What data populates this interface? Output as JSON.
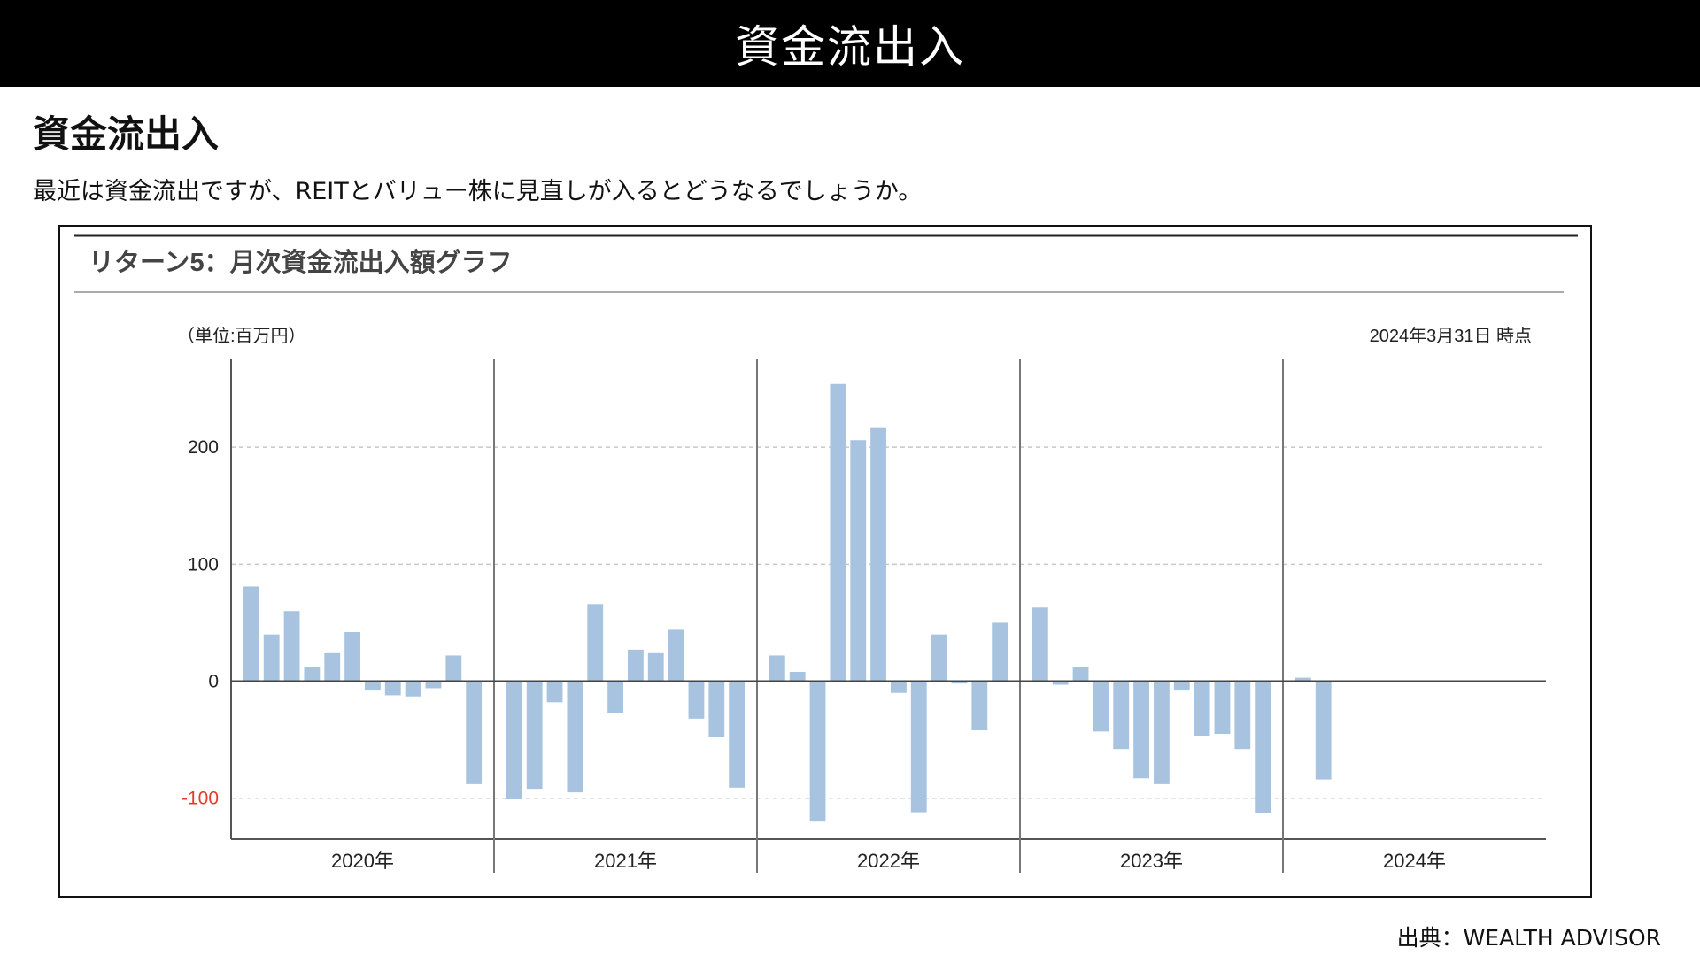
{
  "header": {
    "title": "資金流出入"
  },
  "section": {
    "heading": "資金流出入",
    "description": "最近は資金流出ですが、REITとバリュー株に見直しが入るとどうなるでしょうか。"
  },
  "chart_data": {
    "type": "bar",
    "title": "リターン5：月次資金流出入額グラフ",
    "unit_label": "（単位:百万円）",
    "as_of": "2024年3月31日 時点",
    "ylim": [
      -135,
      275
    ],
    "yticks": [
      {
        "value": 200,
        "label": "200",
        "color": "#222222"
      },
      {
        "value": 100,
        "label": "100",
        "color": "#222222"
      },
      {
        "value": 0,
        "label": "0",
        "color": "#222222"
      },
      {
        "value": -100,
        "label": "-100",
        "color": "#e53a2a"
      }
    ],
    "grid": true,
    "bar_color": "#a7c3df",
    "years": [
      {
        "label": "2020年",
        "values": [
          81,
          40,
          60,
          12,
          24,
          42,
          -8,
          -12,
          -13,
          -6,
          22,
          -88
        ]
      },
      {
        "label": "2021年",
        "values": [
          -101,
          -92,
          -18,
          -95,
          66,
          -27,
          27,
          24,
          44,
          -32,
          -48,
          -91
        ]
      },
      {
        "label": "2022年",
        "values": [
          22,
          8,
          -120,
          254,
          206,
          217,
          -10,
          -112,
          40,
          -2,
          -42,
          50
        ]
      },
      {
        "label": "2023年",
        "values": [
          63,
          -3,
          12,
          -43,
          -58,
          -83,
          -88,
          -8,
          -47,
          -45,
          -58,
          -113
        ]
      },
      {
        "label": "2024年",
        "values": [
          3,
          -84,
          null
        ]
      }
    ]
  },
  "footer": {
    "source": "出典：WEALTH ADVISOR"
  }
}
